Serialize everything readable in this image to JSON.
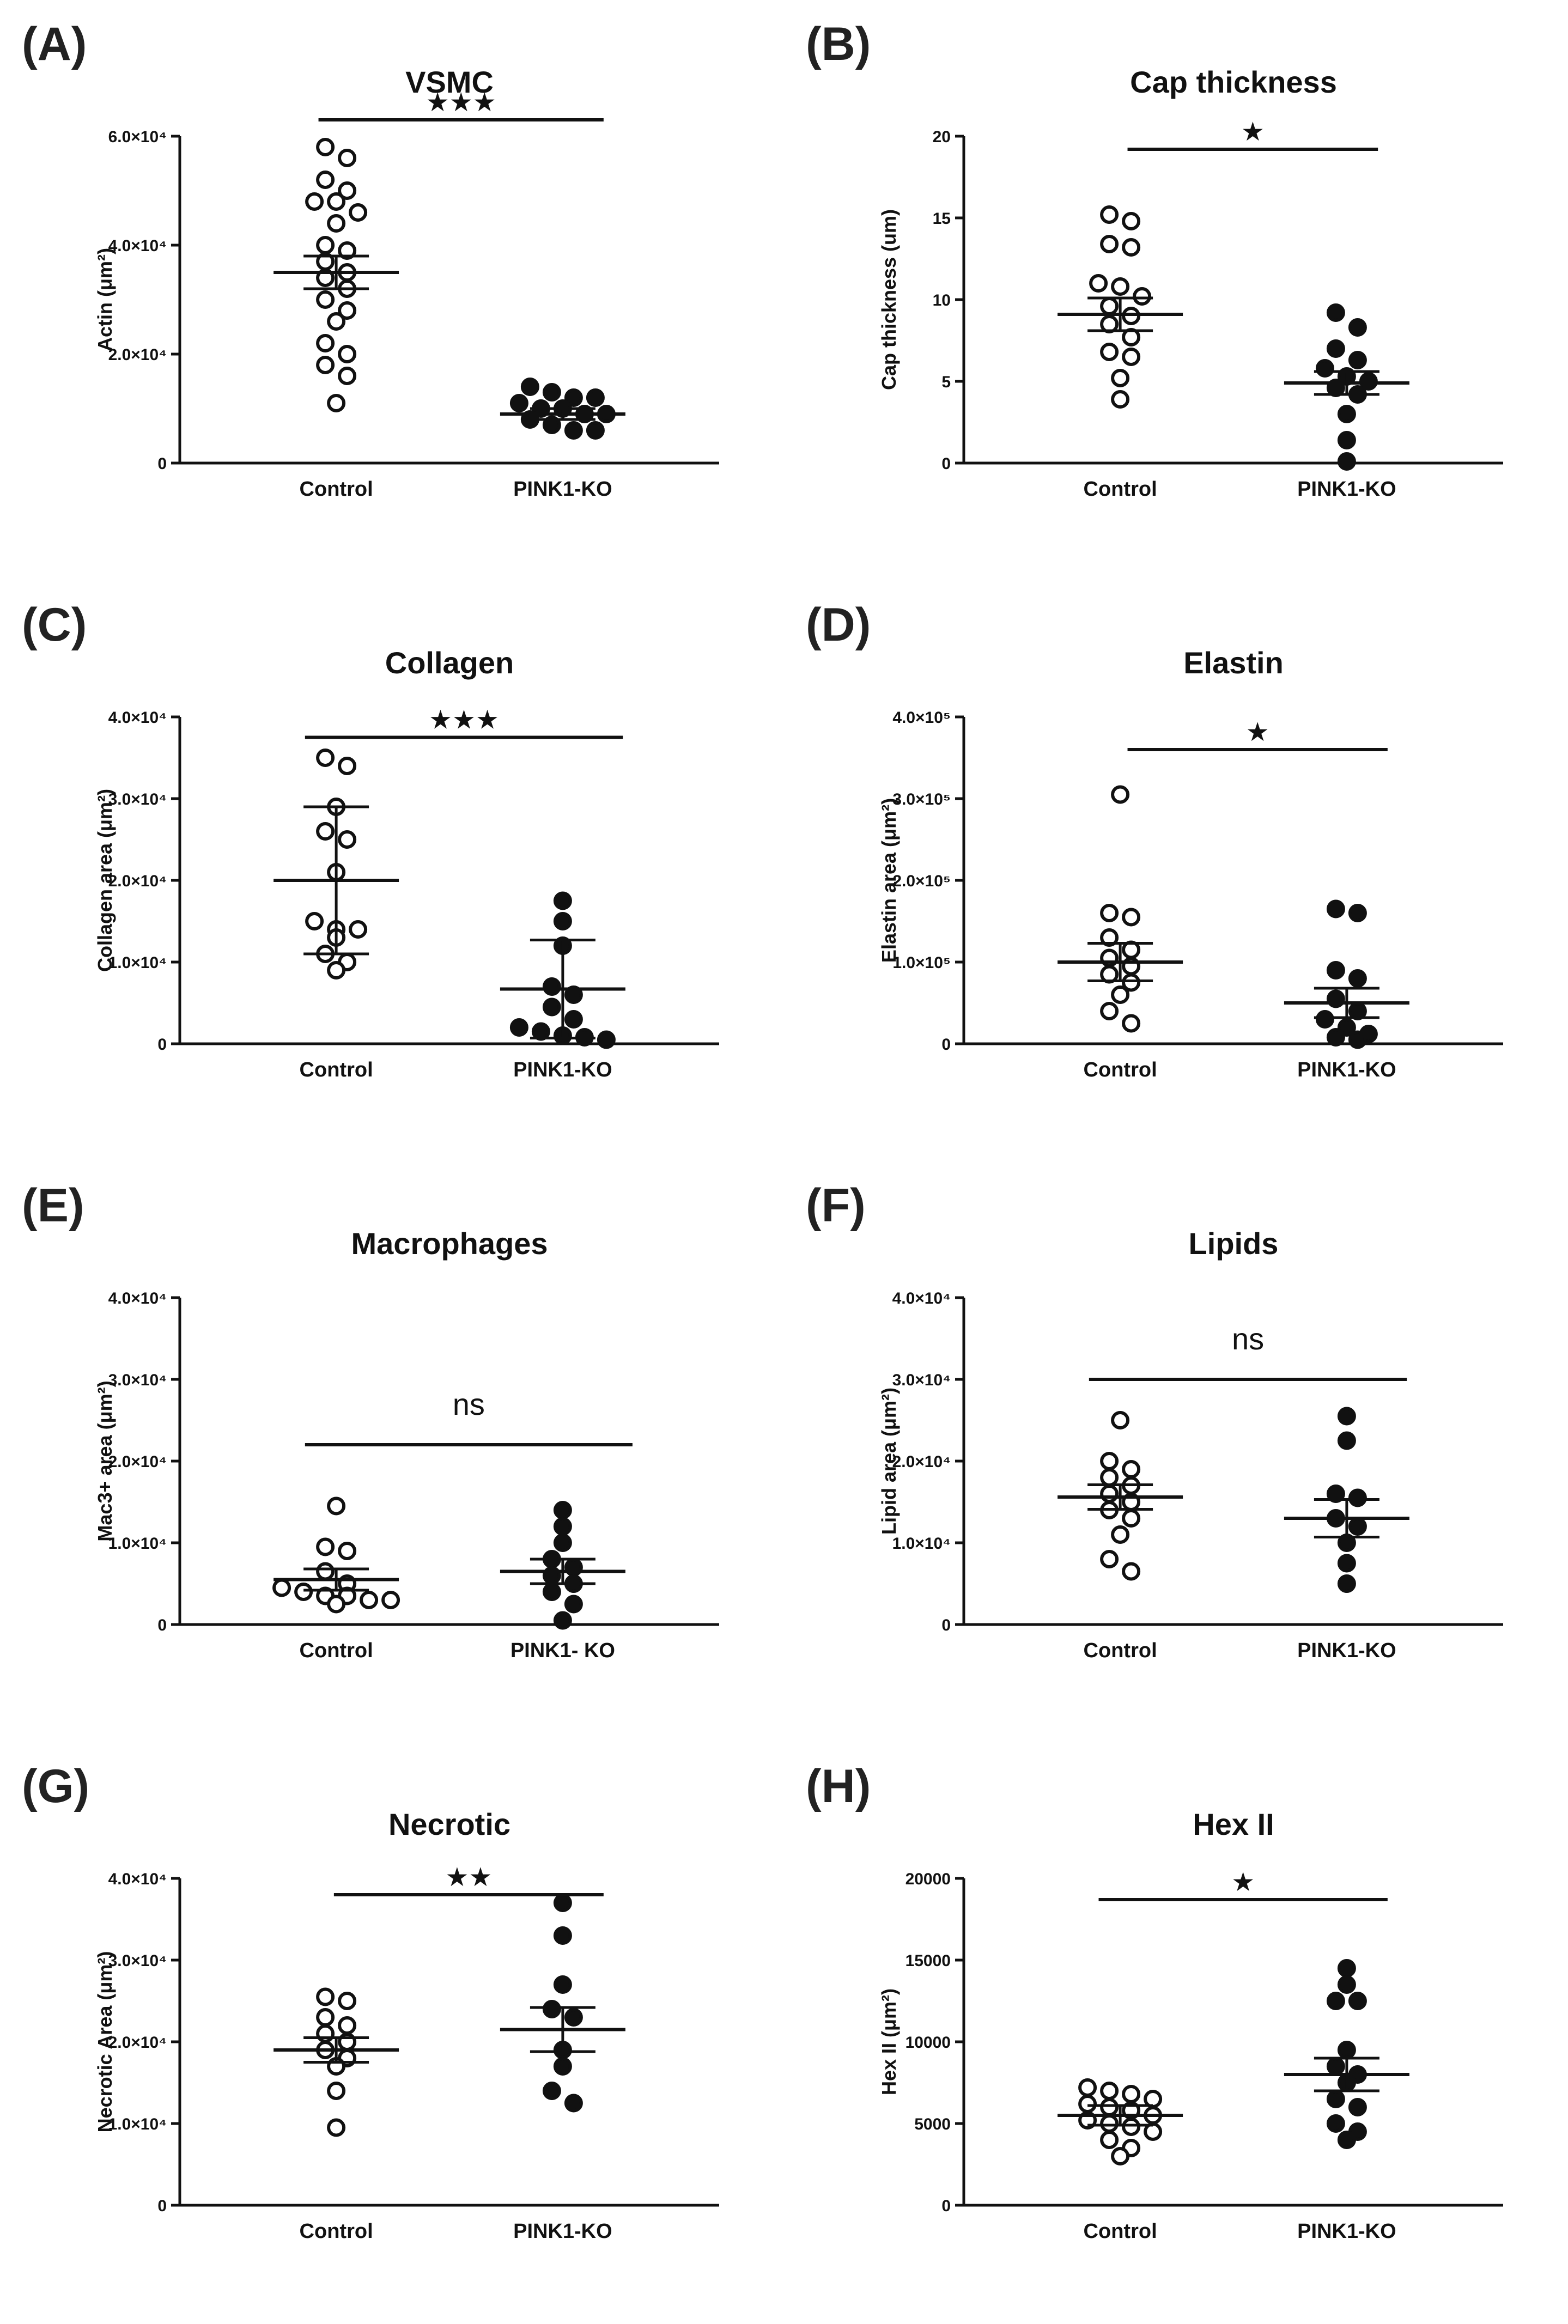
{
  "figure": {
    "groups": [
      "Control",
      "PINK1-KO"
    ]
  },
  "chart_data": [
    {
      "id": "A",
      "panel_label": "(A)",
      "type": "scatter",
      "title": "VSMC",
      "ylabel": "Actin (μm²)",
      "ylim": [
        0,
        60000
      ],
      "yticks": [
        0,
        20000,
        40000,
        60000
      ],
      "ytick_labels": [
        "0",
        "2.0×10⁴",
        "4.0×10⁴",
        "6.0×10⁴"
      ],
      "categories": [
        "Control",
        "PINK1-KO"
      ],
      "significance": "★★★",
      "sig_y": 63000,
      "sig_span": [
        0.72,
        2.2
      ],
      "series": [
        {
          "name": "Control",
          "marker": "open",
          "mean": 35000,
          "err": 3000,
          "values": [
            58000,
            56000,
            52000,
            50000,
            48000,
            48000,
            46000,
            44000,
            40000,
            39000,
            37000,
            35000,
            34000,
            32000,
            30000,
            28000,
            26000,
            22000,
            20000,
            18000,
            16000,
            11000
          ]
        },
        {
          "name": "PINK1-KO",
          "marker": "filled",
          "mean": 9000,
          "err": 1000,
          "values": [
            14000,
            13000,
            12000,
            12000,
            11000,
            10000,
            10000,
            9000,
            9000,
            8000,
            7000,
            6000,
            6000
          ]
        }
      ]
    },
    {
      "id": "B",
      "panel_label": "(B)",
      "type": "scatter",
      "title": "Cap thickness",
      "ylabel": "Cap thickness (um)",
      "ylim": [
        0,
        20
      ],
      "yticks": [
        0,
        5,
        10,
        15,
        20
      ],
      "ytick_labels": [
        "0",
        "5",
        "10",
        "15",
        "20"
      ],
      "categories": [
        "Control",
        "PINK1-KO"
      ],
      "significance": "★",
      "sig_y": 19.2,
      "sig_span": [
        0.85,
        2.15
      ],
      "series": [
        {
          "name": "Control",
          "marker": "open",
          "mean": 9.1,
          "err": 1.0,
          "values": [
            15.2,
            14.8,
            13.4,
            13.2,
            11.0,
            10.8,
            10.2,
            9.6,
            9.0,
            8.5,
            7.7,
            6.8,
            6.5,
            5.2,
            3.9
          ]
        },
        {
          "name": "PINK1-KO",
          "marker": "filled",
          "mean": 4.9,
          "err": 0.7,
          "values": [
            9.2,
            8.3,
            7.0,
            6.3,
            5.8,
            5.3,
            5.0,
            4.6,
            4.2,
            3.0,
            1.4,
            0.1
          ]
        }
      ]
    },
    {
      "id": "C",
      "panel_label": "(C)",
      "type": "scatter",
      "title": "Collagen",
      "ylabel": "Collagen area (μm²)",
      "ylim": [
        0,
        40000
      ],
      "yticks": [
        0,
        10000,
        20000,
        30000,
        40000
      ],
      "ytick_labels": [
        "0",
        "1.0×10⁴",
        "2.0×10⁴",
        "3.0×10⁴",
        "4.0×10⁴"
      ],
      "categories": [
        "Control",
        "PINK1-KO"
      ],
      "significance": "★★★",
      "sig_y": 37500,
      "sig_span": [
        0.65,
        2.3
      ],
      "series": [
        {
          "name": "Control",
          "marker": "open",
          "mean": 20000,
          "err": 9000,
          "values": [
            35000,
            34000,
            29000,
            26000,
            25000,
            21000,
            15000,
            14000,
            14000,
            13000,
            11000,
            10000,
            9000
          ]
        },
        {
          "name": "PINK1-KO",
          "marker": "filled",
          "mean": 6700,
          "err": 6000,
          "values": [
            17500,
            15000,
            12000,
            7000,
            6000,
            4500,
            3000,
            2000,
            1500,
            1000,
            800,
            500
          ]
        }
      ]
    },
    {
      "id": "D",
      "panel_label": "(D)",
      "type": "scatter",
      "title": "Elastin",
      "ylabel": "Elastin area (μm²)",
      "ylim": [
        0,
        400000
      ],
      "yticks": [
        0,
        100000,
        200000,
        300000,
        400000
      ],
      "ytick_labels": [
        "0",
        "1.0×10⁵",
        "2.0×10⁵",
        "3.0×10⁵",
        "4.0×10⁵"
      ],
      "categories": [
        "Control",
        "PINK1-KO"
      ],
      "significance": "★",
      "sig_y": 360000,
      "sig_span": [
        0.85,
        2.2
      ],
      "series": [
        {
          "name": "Control",
          "marker": "open",
          "mean": 100000,
          "err": 23000,
          "values": [
            305000,
            160000,
            155000,
            130000,
            115000,
            105000,
            95000,
            85000,
            75000,
            60000,
            40000,
            25000
          ]
        },
        {
          "name": "PINK1-KO",
          "marker": "filled",
          "mean": 50000,
          "err": 18000,
          "values": [
            165000,
            160000,
            90000,
            80000,
            55000,
            40000,
            30000,
            20000,
            12000,
            8000,
            5000
          ]
        }
      ]
    },
    {
      "id": "E",
      "panel_label": "(E)",
      "type": "scatter",
      "title": "Macrophages",
      "ylabel": "Mac3+ area (μm²)",
      "ylim": [
        0,
        40000
      ],
      "yticks": [
        0,
        10000,
        20000,
        30000,
        40000
      ],
      "ytick_labels": [
        "0",
        "1.0×10⁴",
        "2.0×10⁴",
        "3.0×10⁴",
        "4.0×10⁴"
      ],
      "categories": [
        "Control",
        "PINK1-KO"
      ],
      "category_labels": [
        "Control",
        "PINK1- KO"
      ],
      "significance": "ns",
      "sig_y": 22000,
      "sig_span": [
        0.65,
        2.35
      ],
      "series": [
        {
          "name": "Control",
          "marker": "open",
          "mean": 5500,
          "err": 1300,
          "values": [
            14500,
            9500,
            9000,
            6500,
            5000,
            4500,
            4000,
            3500,
            3500,
            3000,
            3000,
            2500
          ]
        },
        {
          "name": "PINK1-KO",
          "marker": "filled",
          "mean": 6500,
          "err": 1500,
          "values": [
            14000,
            12000,
            10000,
            8000,
            7000,
            6000,
            5000,
            4000,
            2500,
            500
          ]
        }
      ]
    },
    {
      "id": "F",
      "panel_label": "(F)",
      "type": "scatter",
      "title": "Lipids",
      "ylabel": "Lipid area (μm²)",
      "ylim": [
        0,
        40000
      ],
      "yticks": [
        0,
        10000,
        20000,
        30000,
        40000
      ],
      "ytick_labels": [
        "0",
        "1.0×10⁴",
        "2.0×10⁴",
        "3.0×10⁴",
        "4.0×10⁴"
      ],
      "categories": [
        "Control",
        "PINK1-KO"
      ],
      "significance": "ns",
      "sig_y": 30000,
      "sig_span": [
        0.65,
        2.3
      ],
      "series": [
        {
          "name": "Control",
          "marker": "open",
          "mean": 15600,
          "err": 1500,
          "values": [
            25000,
            20000,
            19000,
            18000,
            17000,
            16000,
            15000,
            14000,
            13000,
            11000,
            8000,
            6500
          ]
        },
        {
          "name": "PINK1-KO",
          "marker": "filled",
          "mean": 13000,
          "err": 2300,
          "values": [
            25500,
            22500,
            16000,
            15500,
            13000,
            12000,
            10000,
            7500,
            5000
          ]
        }
      ]
    },
    {
      "id": "G",
      "panel_label": "(G)",
      "type": "scatter",
      "title": "Necrotic",
      "ylabel": "Necrotic Area (μm²)",
      "ylim": [
        0,
        40000
      ],
      "yticks": [
        0,
        10000,
        20000,
        30000,
        40000
      ],
      "ytick_labels": [
        "0",
        "1.0×10⁴",
        "2.0×10⁴",
        "3.0×10⁴",
        "4.0×10⁴"
      ],
      "categories": [
        "Control",
        "PINK1-KO"
      ],
      "significance": "★★",
      "sig_y": 38000,
      "sig_span": [
        0.8,
        2.2
      ],
      "series": [
        {
          "name": "Control",
          "marker": "open",
          "mean": 19000,
          "err": 1500,
          "values": [
            25500,
            25000,
            23000,
            22000,
            21000,
            20000,
            19000,
            18000,
            17000,
            14000,
            9500
          ]
        },
        {
          "name": "PINK1-KO",
          "marker": "filled",
          "mean": 21500,
          "err": 2700,
          "values": [
            37000,
            33000,
            27000,
            24000,
            23000,
            19000,
            17000,
            14000,
            12500
          ]
        }
      ]
    },
    {
      "id": "H",
      "panel_label": "(H)",
      "type": "scatter",
      "title": "Hex II",
      "ylabel": "Hex II (μm²)",
      "ylim": [
        0,
        20000
      ],
      "yticks": [
        0,
        5000,
        10000,
        15000,
        20000
      ],
      "ytick_labels": [
        "0",
        "5000",
        "10000",
        "15000",
        "20000"
      ],
      "categories": [
        "Control",
        "PINK1-KO"
      ],
      "significance": "★",
      "sig_y": 18700,
      "sig_span": [
        0.7,
        2.2
      ],
      "series": [
        {
          "name": "Control",
          "marker": "open",
          "mean": 5500,
          "err": 600,
          "values": [
            7200,
            7000,
            6800,
            6500,
            6200,
            6000,
            5800,
            5500,
            5200,
            5000,
            4800,
            4500,
            4000,
            3500,
            3000
          ]
        },
        {
          "name": "PINK1-KO",
          "marker": "filled",
          "mean": 8000,
          "err": 1000,
          "values": [
            14500,
            13500,
            12500,
            12500,
            9500,
            8500,
            8000,
            7500,
            6500,
            6000,
            5000,
            4500,
            4000
          ]
        }
      ]
    }
  ]
}
